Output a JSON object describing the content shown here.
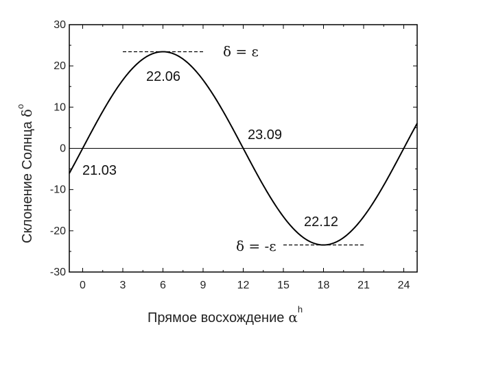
{
  "chart_data": {
    "type": "line",
    "xlabel": "Прямое восхождение",
    "xlabel_symbol": "α",
    "xlabel_sup": "h",
    "ylabel": "Склонение Солнца",
    "ylabel_symbol": "δ",
    "ylabel_sup": "o",
    "xlim": [
      -1,
      25
    ],
    "ylim": [
      -30,
      30
    ],
    "x_ticks": [
      0,
      3,
      6,
      9,
      12,
      15,
      18,
      21,
      24
    ],
    "y_ticks": [
      -30,
      -20,
      -10,
      0,
      10,
      20,
      30
    ],
    "grid": false,
    "epsilon": 23.44,
    "series": [
      {
        "x": [
          -1,
          0,
          1,
          2,
          3,
          4,
          5,
          6,
          7,
          8,
          9,
          10,
          11,
          12,
          13,
          14,
          15,
          16,
          17,
          18,
          19,
          20,
          21,
          22,
          23,
          24,
          25
        ],
        "y": [
          -5.8,
          0,
          5.7,
          11.0,
          15.6,
          19.3,
          21.9,
          23.4,
          21.9,
          19.3,
          15.6,
          11.0,
          5.7,
          0,
          -5.7,
          -11.0,
          -15.6,
          -19.3,
          -21.9,
          -23.4,
          -21.9,
          -19.3,
          -15.6,
          -11.0,
          -5.7,
          0,
          5.8
        ]
      }
    ],
    "reference_lines": [
      {
        "label": "δ = ε",
        "y": 23.44,
        "x_range": [
          3,
          9
        ]
      },
      {
        "label": "δ = -ε",
        "y": -23.44,
        "x_range": [
          15,
          21
        ]
      }
    ],
    "annotations": [
      {
        "text": "21.03",
        "x": 0,
        "y": 0
      },
      {
        "text": "22.06",
        "x": 6,
        "y": 23.44
      },
      {
        "text": "23.09",
        "x": 12,
        "y": 0
      },
      {
        "text": "22.12",
        "x": 18,
        "y": -23.44
      }
    ]
  }
}
